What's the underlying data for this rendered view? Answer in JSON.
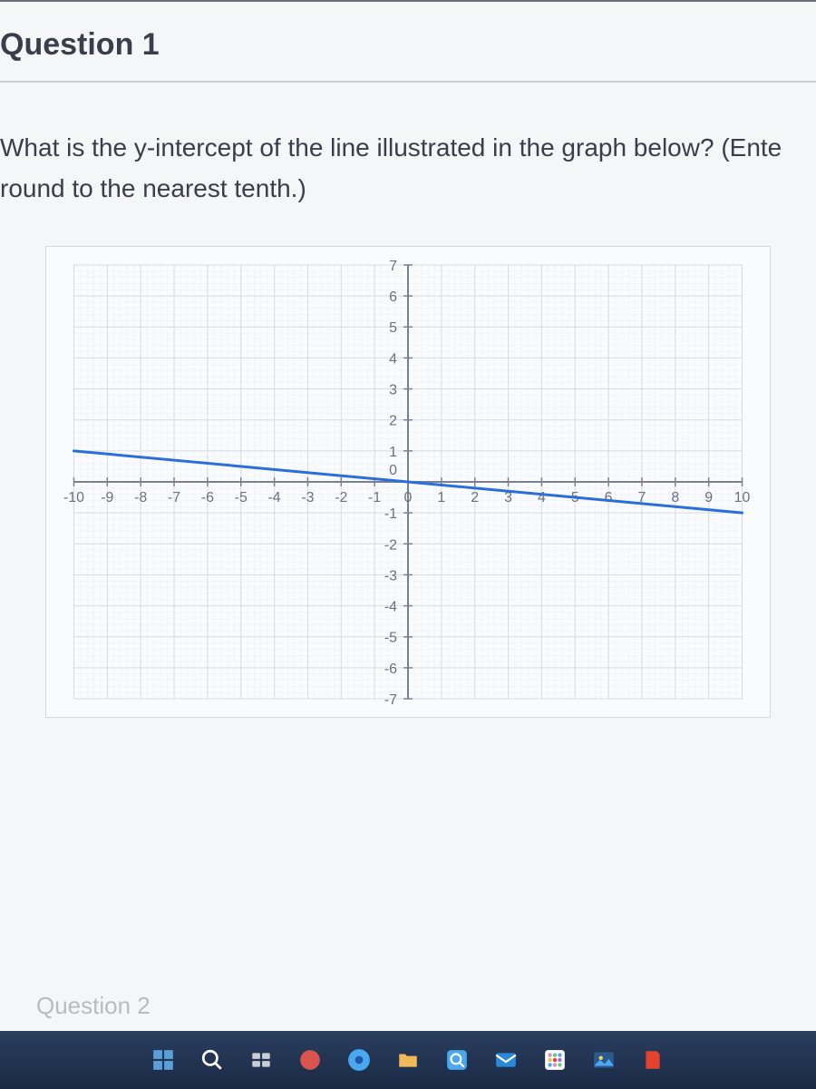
{
  "header": {
    "title": "Question 1"
  },
  "body": {
    "prompt": "What is the y-intercept of the line illustrated in the graph below? (Ente round to the nearest tenth.)"
  },
  "chart": {
    "type": "line",
    "background_color": "#fafbfc",
    "grid_color": "#d6dbe2",
    "fine_grid_color": "#eceff3",
    "axis_color": "#7a8090",
    "axis_label_color": "#6a7080",
    "axis_label_fontsize": 16,
    "xlim": [
      -10,
      10
    ],
    "ylim": [
      -7,
      7
    ],
    "xtick_step": 1,
    "ytick_step": 1,
    "xticks": [
      -10,
      -9,
      -8,
      -7,
      -6,
      -5,
      -4,
      -3,
      -2,
      -1,
      0,
      1,
      2,
      3,
      4,
      5,
      6,
      7,
      8,
      9,
      10
    ],
    "yticks": [
      -7,
      -6,
      -5,
      -4,
      -3,
      -2,
      -1,
      1,
      2,
      3,
      4,
      5,
      6,
      7
    ],
    "line": {
      "color": "#2a6edb",
      "width": 3,
      "points": [
        [
          -10,
          1
        ],
        [
          10,
          -1
        ]
      ]
    }
  },
  "nav": {
    "next_label": "Question 2"
  },
  "taskbar": {
    "icons": [
      {
        "name": "start-icon",
        "color": "#5aa0d8"
      },
      {
        "name": "search-icon",
        "color": "#ffffff"
      },
      {
        "name": "taskview-icon",
        "color": "#c8cdd6"
      },
      {
        "name": "chat-icon",
        "color": "#d9534f"
      },
      {
        "name": "browser-icon",
        "color": "#4aa8ee"
      },
      {
        "name": "explorer-icon",
        "color": "#f0b95a"
      },
      {
        "name": "magnify-icon",
        "color": "#4aa8ee"
      },
      {
        "name": "mail-icon",
        "color": "#2a88d8"
      },
      {
        "name": "apps-icon",
        "color": "#e48ab5"
      },
      {
        "name": "photos-icon",
        "color": "#4aa8ee"
      },
      {
        "name": "office-icon",
        "color": "#e2432e"
      }
    ]
  }
}
